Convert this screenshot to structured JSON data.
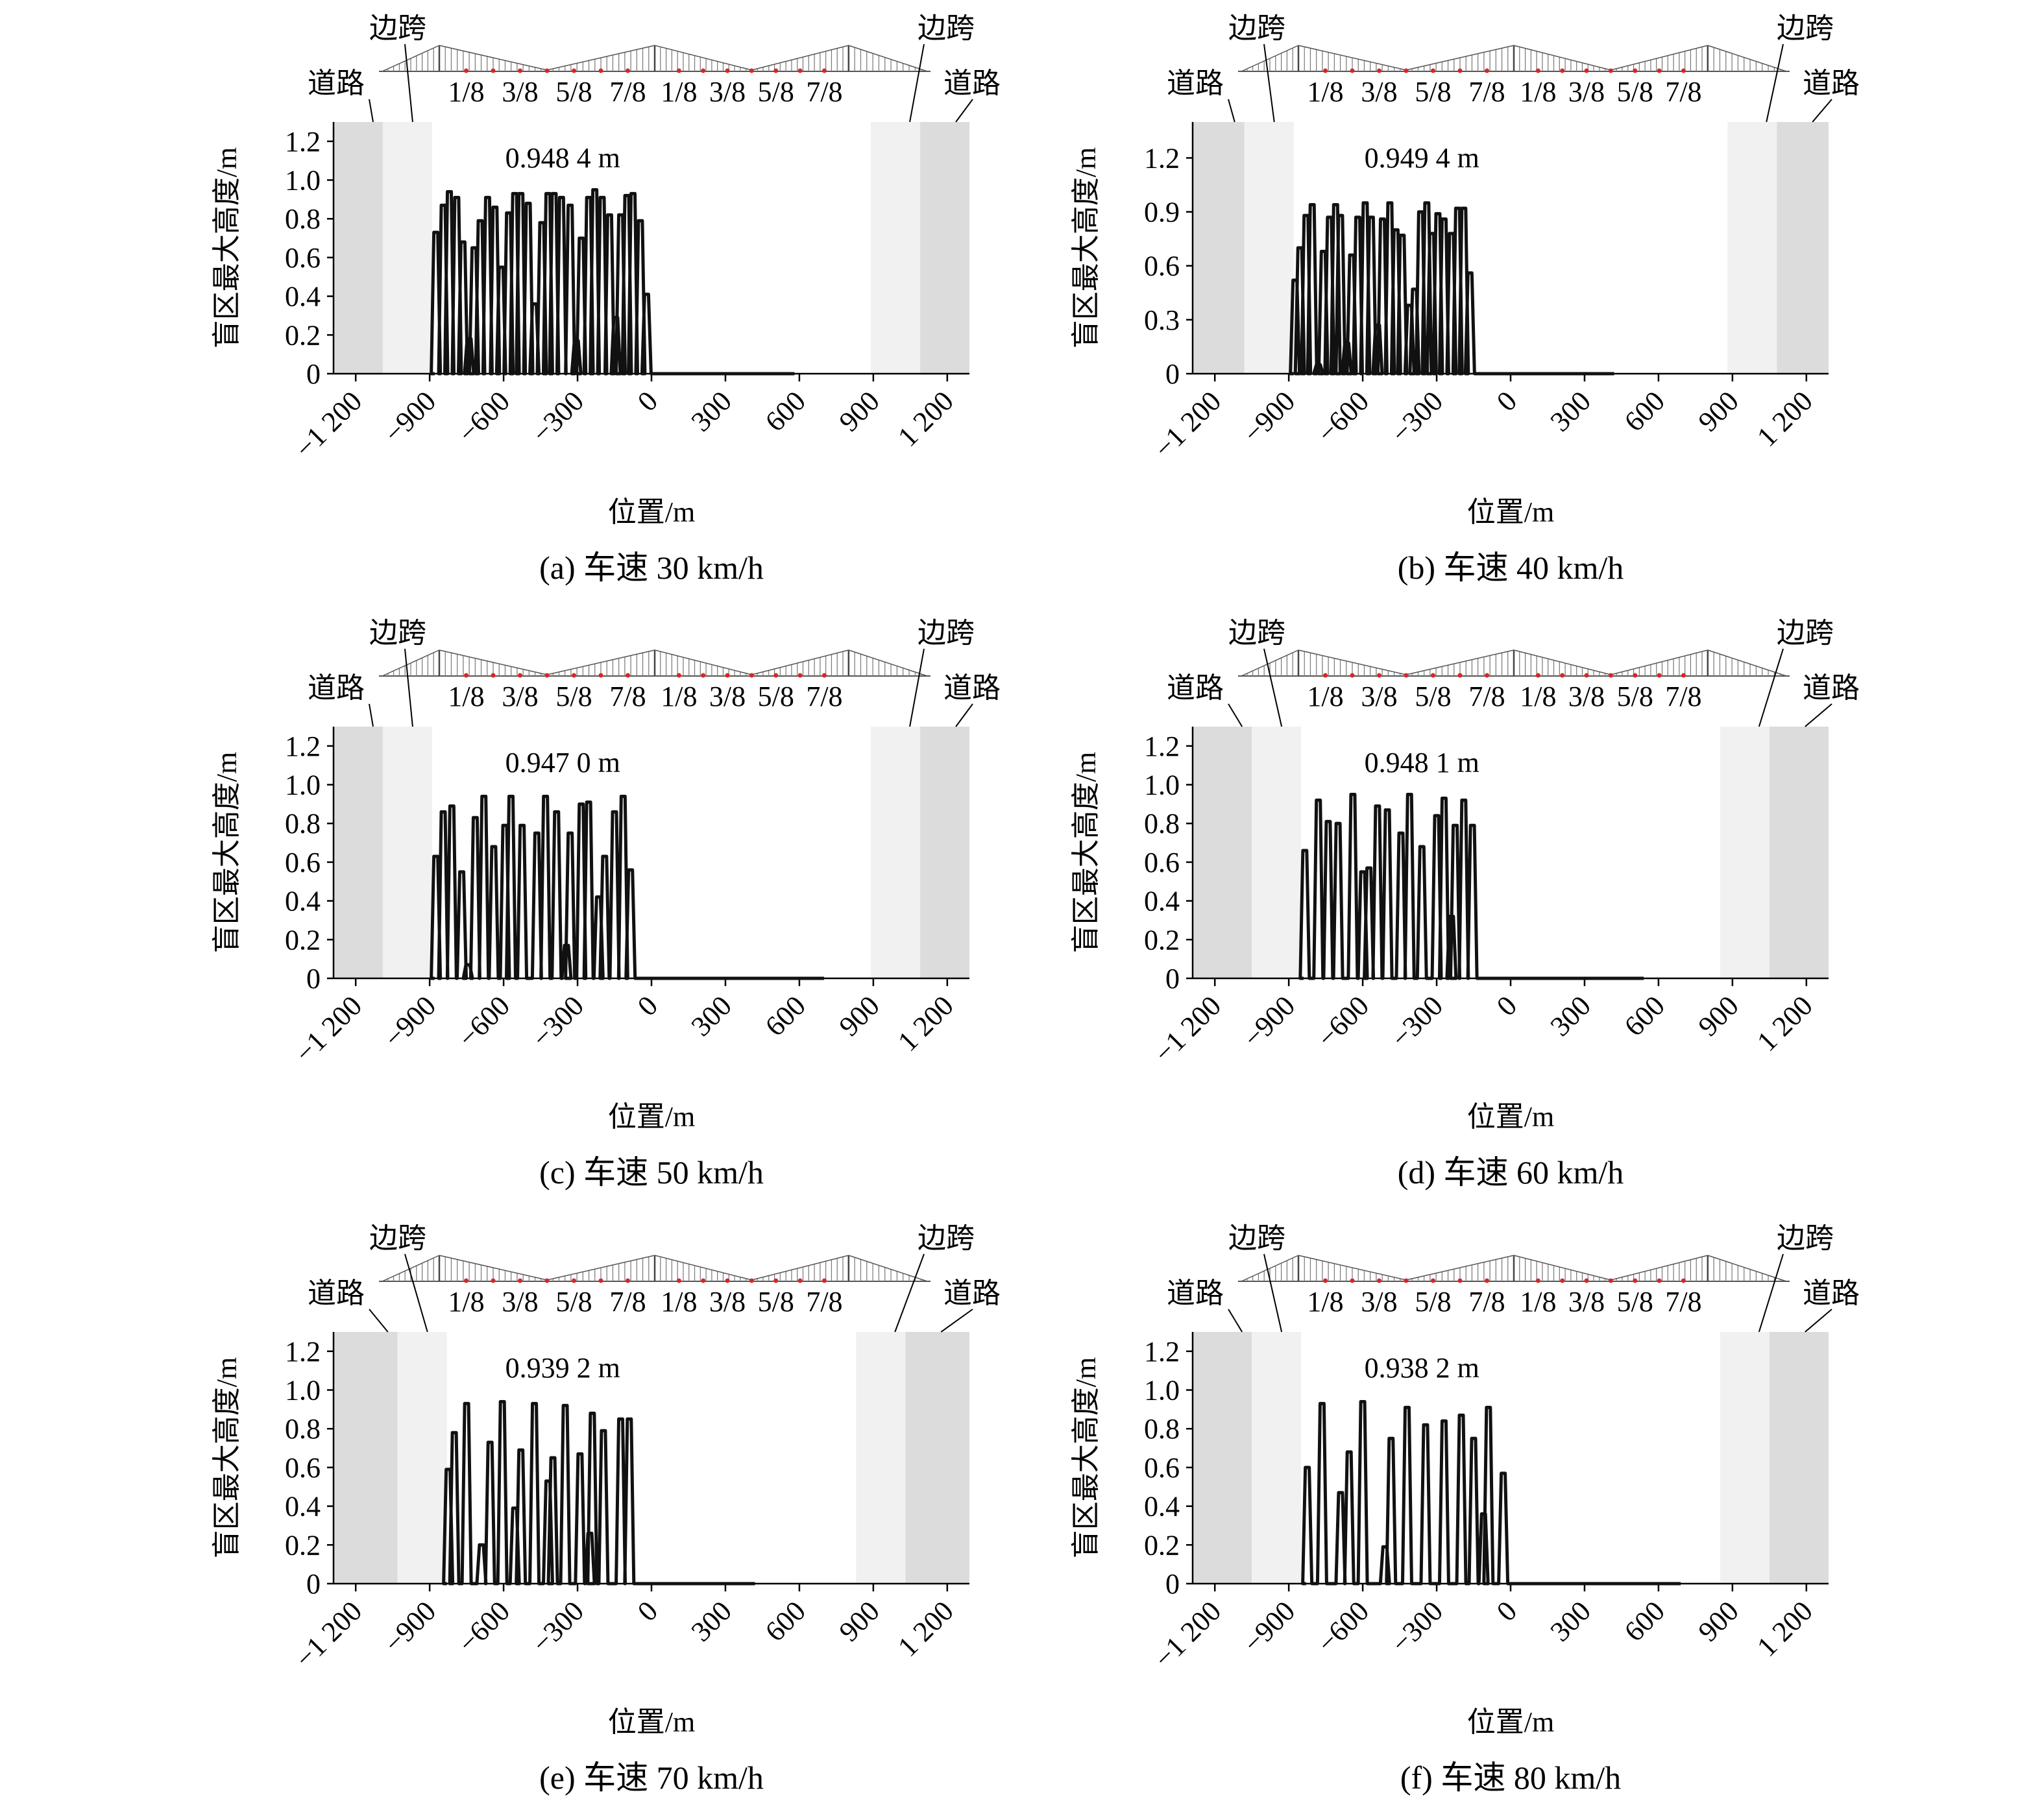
{
  "labels": {
    "road": "道路",
    "side_span": "边跨",
    "section_marks": [
      "1/8",
      "3/8",
      "5/8",
      "7/8",
      "1/8",
      "3/8",
      "5/8",
      "7/8"
    ],
    "ylabel": "盲区最大高度/m",
    "xlabel": "位置/m"
  },
  "colors": {
    "road_zone": "#dcdcdc",
    "side_span_zone": "#f1f1f1",
    "series": "#111111",
    "section_marker": "#d62728"
  },
  "chart_data": [
    {
      "type": "line",
      "panel": "a",
      "caption": "(a) 车速 30 km/h",
      "annotation": "0.948 4 m",
      "ylim": [
        0,
        1.3
      ],
      "yticks": [
        0,
        0.2,
        0.4,
        0.6,
        0.8,
        1.0,
        1.2
      ],
      "ytick_labels": [
        "0",
        "0.2",
        "0.4",
        "0.6",
        "0.8",
        "1.0",
        "1.2"
      ],
      "xlim": [
        -1290,
        1290
      ],
      "xticks": [
        -1200,
        -900,
        -600,
        -300,
        0,
        300,
        600,
        900,
        1200
      ],
      "xtick_labels": [
        "−1 200",
        "−900",
        "−600",
        "−300",
        "0",
        "300",
        "600",
        "900",
        "1 200"
      ],
      "road_zones": [
        [
          -1290,
          -1090
        ],
        [
          1090,
          1290
        ]
      ],
      "side_span_zones": [
        [
          -1090,
          -890
        ],
        [
          890,
          1090
        ]
      ],
      "series_start": -880,
      "series_end": 580,
      "peaks": [
        [
          -875,
          0.73
        ],
        [
          -845,
          0.87
        ],
        [
          -820,
          0.94
        ],
        [
          -790,
          0.91
        ],
        [
          -765,
          0.68
        ],
        [
          -740,
          0.18
        ],
        [
          -720,
          0.65
        ],
        [
          -695,
          0.79
        ],
        [
          -665,
          0.91
        ],
        [
          -635,
          0.86
        ],
        [
          -610,
          0.55
        ],
        [
          -580,
          0.83
        ],
        [
          -555,
          0.93
        ],
        [
          -530,
          0.93
        ],
        [
          -500,
          0.88
        ],
        [
          -475,
          0.36
        ],
        [
          -445,
          0.78
        ],
        [
          -420,
          0.93
        ],
        [
          -395,
          0.93
        ],
        [
          -365,
          0.91
        ],
        [
          -330,
          0.87
        ],
        [
          -305,
          0.17
        ],
        [
          -285,
          0.7
        ],
        [
          -255,
          0.91
        ],
        [
          -230,
          0.95
        ],
        [
          -200,
          0.91
        ],
        [
          -170,
          0.82
        ],
        [
          -145,
          0.29
        ],
        [
          -125,
          0.82
        ],
        [
          -100,
          0.92
        ],
        [
          -75,
          0.93
        ],
        [
          -45,
          0.79
        ],
        [
          -20,
          0.41
        ]
      ]
    },
    {
      "type": "line",
      "panel": "b",
      "caption": "(b) 车速 40 km/h",
      "annotation": "0.949 4 m",
      "ylim": [
        0,
        1.4
      ],
      "yticks": [
        0,
        0.3,
        0.6,
        0.9,
        1.2
      ],
      "ytick_labels": [
        "0",
        "0.3",
        "0.6",
        "0.9",
        "1.2"
      ],
      "xlim": [
        -1290,
        1290
      ],
      "xticks": [
        -1200,
        -900,
        -600,
        -300,
        0,
        300,
        600,
        900,
        1200
      ],
      "xtick_labels": [
        "−1 200",
        "−900",
        "−600",
        "−300",
        "0",
        "300",
        "600",
        "900",
        "1 200"
      ],
      "road_zones": [
        [
          -1290,
          -1080
        ],
        [
          1080,
          1290
        ]
      ],
      "side_span_zones": [
        [
          -1080,
          -880
        ],
        [
          880,
          1080
        ]
      ],
      "series_start": -880,
      "series_end": 420,
      "peaks": [
        [
          -875,
          0.52
        ],
        [
          -855,
          0.7
        ],
        [
          -830,
          0.88
        ],
        [
          -805,
          0.94
        ],
        [
          -780,
          0.05
        ],
        [
          -760,
          0.68
        ],
        [
          -735,
          0.87
        ],
        [
          -710,
          0.94
        ],
        [
          -690,
          0.88
        ],
        [
          -665,
          0.17
        ],
        [
          -645,
          0.66
        ],
        [
          -620,
          0.87
        ],
        [
          -590,
          0.95
        ],
        [
          -565,
          0.87
        ],
        [
          -540,
          0.27
        ],
        [
          -520,
          0.86
        ],
        [
          -490,
          0.95
        ],
        [
          -465,
          0.8
        ],
        [
          -440,
          0.77
        ],
        [
          -410,
          0.38
        ],
        [
          -390,
          0.47
        ],
        [
          -365,
          0.9
        ],
        [
          -340,
          0.95
        ],
        [
          -320,
          0.78
        ],
        [
          -295,
          0.89
        ],
        [
          -270,
          0.86
        ],
        [
          -240,
          0.78
        ],
        [
          -215,
          0.92
        ],
        [
          -190,
          0.92
        ],
        [
          -165,
          0.56
        ]
      ]
    },
    {
      "type": "line",
      "panel": "c",
      "caption": "(c) 车速 50 km/h",
      "annotation": "0.947 0 m",
      "ylim": [
        0,
        1.3
      ],
      "yticks": [
        0,
        0.2,
        0.4,
        0.6,
        0.8,
        1.0,
        1.2
      ],
      "ytick_labels": [
        "0",
        "0.2",
        "0.4",
        "0.6",
        "0.8",
        "1.0",
        "1.2"
      ],
      "xlim": [
        -1290,
        1290
      ],
      "xticks": [
        -1200,
        -900,
        -600,
        -300,
        0,
        300,
        600,
        900,
        1200
      ],
      "xtick_labels": [
        "−1 200",
        "−900",
        "−600",
        "−300",
        "0",
        "300",
        "600",
        "900",
        "1 200"
      ],
      "road_zones": [
        [
          -1290,
          -1090
        ],
        [
          1090,
          1290
        ]
      ],
      "side_span_zones": [
        [
          -1090,
          -890
        ],
        [
          890,
          1090
        ]
      ],
      "series_start": -880,
      "series_end": 700,
      "peaks": [
        [
          -875,
          0.63
        ],
        [
          -845,
          0.86
        ],
        [
          -810,
          0.89
        ],
        [
          -770,
          0.55
        ],
        [
          -745,
          0.07
        ],
        [
          -715,
          0.83
        ],
        [
          -680,
          0.94
        ],
        [
          -640,
          0.68
        ],
        [
          -595,
          0.79
        ],
        [
          -570,
          0.94
        ],
        [
          -525,
          0.79
        ],
        [
          -465,
          0.75
        ],
        [
          -430,
          0.94
        ],
        [
          -385,
          0.86
        ],
        [
          -345,
          0.17
        ],
        [
          -330,
          0.75
        ],
        [
          -285,
          0.9
        ],
        [
          -255,
          0.91
        ],
        [
          -215,
          0.42
        ],
        [
          -190,
          0.63
        ],
        [
          -150,
          0.86
        ],
        [
          -115,
          0.94
        ],
        [
          -85,
          0.56
        ]
      ]
    },
    {
      "type": "line",
      "panel": "d",
      "caption": "(d) 车速 60 km/h",
      "annotation": "0.948 1 m",
      "ylim": [
        0,
        1.3
      ],
      "yticks": [
        0,
        0.2,
        0.4,
        0.6,
        0.8,
        1.0,
        1.2
      ],
      "ytick_labels": [
        "0",
        "0.2",
        "0.4",
        "0.6",
        "0.8",
        "1.0",
        "1.2"
      ],
      "xlim": [
        -1290,
        1290
      ],
      "xticks": [
        -1200,
        -900,
        -600,
        -300,
        0,
        300,
        600,
        900,
        1200
      ],
      "xtick_labels": [
        "−1 200",
        "−900",
        "−600",
        "−300",
        "0",
        "300",
        "600",
        "900",
        "1 200"
      ],
      "road_zones": [
        [
          -1290,
          -1050
        ],
        [
          1050,
          1290
        ]
      ],
      "side_span_zones": [
        [
          -1050,
          -850
        ],
        [
          850,
          1050
        ]
      ],
      "series_start": -840,
      "series_end": 540,
      "peaks": [
        [
          -835,
          0.66
        ],
        [
          -780,
          0.92
        ],
        [
          -740,
          0.81
        ],
        [
          -700,
          0.8
        ],
        [
          -640,
          0.95
        ],
        [
          -600,
          0.55
        ],
        [
          -575,
          0.57
        ],
        [
          -540,
          0.89
        ],
        [
          -500,
          0.87
        ],
        [
          -445,
          0.75
        ],
        [
          -410,
          0.95
        ],
        [
          -360,
          0.68
        ],
        [
          -300,
          0.84
        ],
        [
          -270,
          0.93
        ],
        [
          -240,
          0.32
        ],
        [
          -225,
          0.79
        ],
        [
          -190,
          0.92
        ],
        [
          -155,
          0.79
        ]
      ]
    },
    {
      "type": "line",
      "panel": "e",
      "caption": "(e) 车速 70 km/h",
      "annotation": "0.939 2 m",
      "ylim": [
        0,
        1.3
      ],
      "yticks": [
        0,
        0.2,
        0.4,
        0.6,
        0.8,
        1.0,
        1.2
      ],
      "ytick_labels": [
        "0",
        "0.2",
        "0.4",
        "0.6",
        "0.8",
        "1.0",
        "1.2"
      ],
      "xlim": [
        -1290,
        1290
      ],
      "xticks": [
        -1200,
        -900,
        -600,
        -300,
        0,
        300,
        600,
        900,
        1200
      ],
      "xtick_labels": [
        "−1 200",
        "−900",
        "−600",
        "−300",
        "0",
        "300",
        "600",
        "900",
        "1 200"
      ],
      "road_zones": [
        [
          -1290,
          -1030
        ],
        [
          1030,
          1290
        ]
      ],
      "side_span_zones": [
        [
          -1030,
          -830
        ],
        [
          830,
          1030
        ]
      ],
      "series_start": -830,
      "series_end": 420,
      "peaks": [
        [
          -825,
          0.59
        ],
        [
          -800,
          0.78
        ],
        [
          -750,
          0.93
        ],
        [
          -690,
          0.2
        ],
        [
          -655,
          0.73
        ],
        [
          -605,
          0.94
        ],
        [
          -555,
          0.39
        ],
        [
          -530,
          0.69
        ],
        [
          -475,
          0.93
        ],
        [
          -420,
          0.53
        ],
        [
          -400,
          0.65
        ],
        [
          -350,
          0.92
        ],
        [
          -290,
          0.67
        ],
        [
          -250,
          0.26
        ],
        [
          -240,
          0.88
        ],
        [
          -195,
          0.79
        ],
        [
          -125,
          0.85
        ],
        [
          -90,
          0.85
        ]
      ]
    },
    {
      "type": "line",
      "panel": "f",
      "caption": "(f) 车速 80 km/h",
      "annotation": "0.938 2 m",
      "ylim": [
        0,
        1.3
      ],
      "yticks": [
        0,
        0.2,
        0.4,
        0.6,
        0.8,
        1.0,
        1.2
      ],
      "ytick_labels": [
        "0",
        "0.2",
        "0.4",
        "0.6",
        "0.8",
        "1.0",
        "1.2"
      ],
      "xlim": [
        -1290,
        1290
      ],
      "xticks": [
        -1200,
        -900,
        -600,
        -300,
        0,
        300,
        600,
        900,
        1200
      ],
      "xtick_labels": [
        "−1 200",
        "−900",
        "−600",
        "−300",
        "0",
        "300",
        "600",
        "900",
        "1 200"
      ],
      "road_zones": [
        [
          -1290,
          -1050
        ],
        [
          1050,
          1290
        ]
      ],
      "side_span_zones": [
        [
          -1050,
          -850
        ],
        [
          850,
          1050
        ]
      ],
      "series_start": -830,
      "series_end": 690,
      "peaks": [
        [
          -825,
          0.6
        ],
        [
          -765,
          0.93
        ],
        [
          -690,
          0.47
        ],
        [
          -655,
          0.68
        ],
        [
          -600,
          0.94
        ],
        [
          -510,
          0.19
        ],
        [
          -485,
          0.75
        ],
        [
          -420,
          0.91
        ],
        [
          -345,
          0.82
        ],
        [
          -270,
          0.84
        ],
        [
          -200,
          0.87
        ],
        [
          -150,
          0.75
        ],
        [
          -110,
          0.36
        ],
        [
          -90,
          0.91
        ],
        [
          -30,
          0.57
        ]
      ]
    }
  ]
}
